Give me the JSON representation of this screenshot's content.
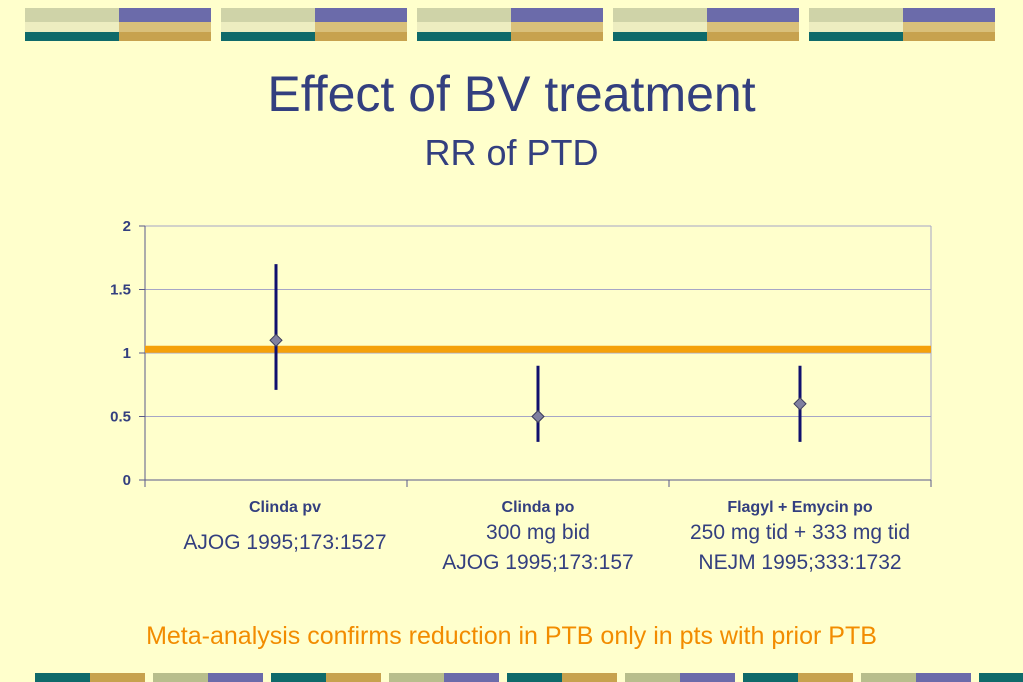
{
  "slide": {
    "title": "Effect of BV treatment",
    "subtitle": "RR of PTD",
    "footer": "Meta-analysis confirms reduction in PTB only in pts with prior PTB"
  },
  "groups": [
    {
      "lines": [
        "AJOG 1995;173:1527"
      ]
    },
    {
      "lines": [
        "300 mg bid",
        "AJOG 1995;173:157"
      ]
    },
    {
      "lines": [
        "250 mg tid + 333 mg tid",
        "NEJM 1995;333:1732"
      ]
    }
  ],
  "colors": {
    "background": "#FFFFCC",
    "title": "#333F7F",
    "footer": "#F28C00",
    "reference_line": "#F5A10A",
    "error_bar": "#10106E",
    "marker": "#8080A0",
    "grid": "#A6A6C6"
  },
  "chart_data": {
    "type": "scatter",
    "categories": [
      "Clinda pv",
      "Clinda po",
      "Flagyl + Emycin po"
    ],
    "series": [
      {
        "values": [
          1.1,
          0.5,
          0.6
        ],
        "low": [
          0.71,
          0.3,
          0.3
        ],
        "high": [
          1.7,
          0.9,
          0.9
        ]
      }
    ],
    "reference_line": 1.03,
    "yticks": [
      "0",
      "0.5",
      "1",
      "1.5",
      "2"
    ],
    "ylim": [
      0,
      2
    ],
    "grid": true
  }
}
